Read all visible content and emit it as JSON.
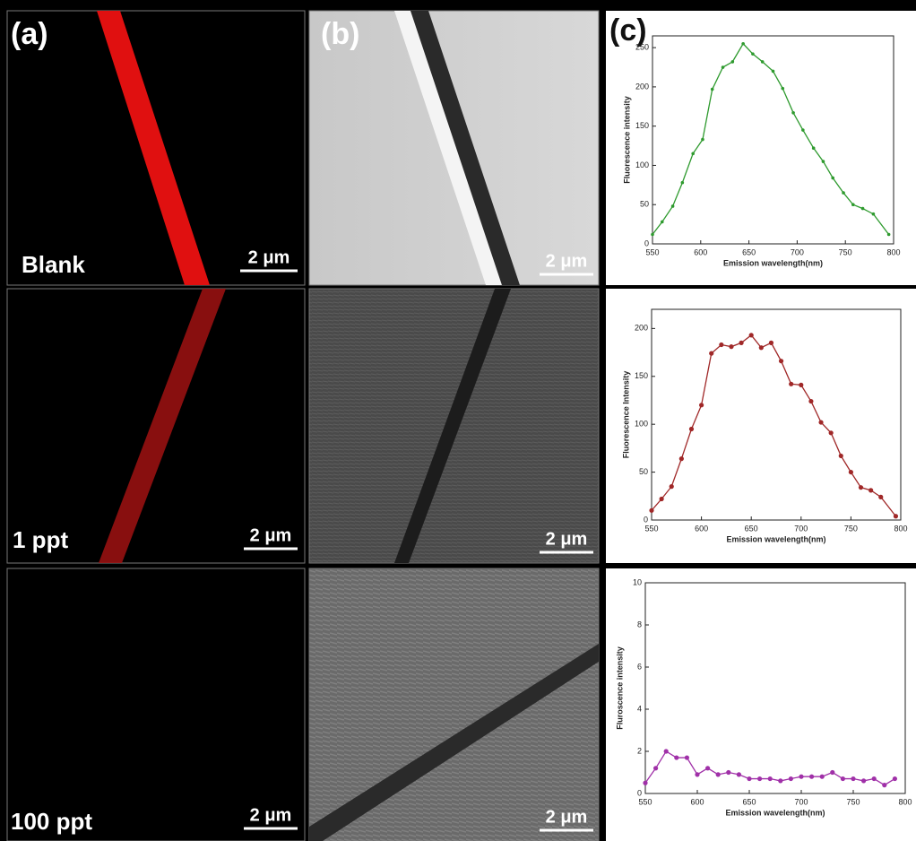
{
  "panels": {
    "a": "(a)",
    "b": "(b)",
    "c": "(c)",
    "rows": [
      "Blank",
      "1 ppt",
      "100 ppt"
    ],
    "scale_bar": "2 μm"
  },
  "chart_data": [
    {
      "type": "line",
      "xlabel": "Emission wavelength(nm)",
      "ylabel": "Fluorescence intensity",
      "x": [
        550,
        560,
        571,
        581,
        592,
        602,
        612,
        623,
        633,
        644,
        654,
        664,
        675,
        685,
        696,
        706,
        717,
        727,
        737,
        748,
        758,
        768,
        779,
        795
      ],
      "series": [
        {
          "name": "Blank",
          "color": "#2e9a2e",
          "values": [
            12,
            28,
            48,
            78,
            115,
            133,
            197,
            225,
            232,
            255,
            242,
            232,
            220,
            198,
            167,
            145,
            122,
            105,
            84,
            65,
            50,
            45,
            38,
            12
          ]
        }
      ],
      "xlim": [
        550,
        800
      ],
      "xticks": [
        550,
        600,
        650,
        700,
        750,
        800
      ],
      "ylim": [
        0,
        265
      ],
      "yticks": [
        0,
        50,
        100,
        150,
        200,
        250
      ]
    },
    {
      "type": "line",
      "xlabel": "Emission wavelength(nm)",
      "ylabel": "Fluorescence Intensity",
      "x": [
        550,
        560,
        570,
        580,
        590,
        600,
        610,
        620,
        630,
        640,
        650,
        660,
        670,
        680,
        690,
        700,
        710,
        720,
        730,
        740,
        750,
        760,
        770,
        780,
        795
      ],
      "series": [
        {
          "name": "1 ppt",
          "color": "#a02828",
          "values": [
            10,
            22,
            35,
            64,
            95,
            120,
            174,
            183,
            181,
            185,
            193,
            180,
            185,
            166,
            142,
            141,
            124,
            102,
            91,
            67,
            50,
            34,
            31,
            24,
            4
          ]
        }
      ],
      "xlim": [
        550,
        800
      ],
      "xticks": [
        550,
        600,
        650,
        700,
        750,
        800
      ],
      "ylim": [
        0,
        220
      ],
      "yticks": [
        0,
        50,
        100,
        150,
        200
      ]
    },
    {
      "type": "line",
      "xlabel": "Emission wavelength(nm)",
      "ylabel": "Fluroscence intensity",
      "x": [
        550,
        560,
        570,
        580,
        590,
        600,
        610,
        620,
        630,
        640,
        650,
        660,
        670,
        680,
        690,
        700,
        710,
        720,
        730,
        740,
        750,
        760,
        770,
        780,
        790
      ],
      "series": [
        {
          "name": "100 ppt",
          "color": "#a030a8",
          "values": [
            0.5,
            1.2,
            2.0,
            1.7,
            1.7,
            0.9,
            1.2,
            0.9,
            1.0,
            0.9,
            0.7,
            0.7,
            0.7,
            0.6,
            0.7,
            0.8,
            0.8,
            0.8,
            1.0,
            0.7,
            0.7,
            0.6,
            0.7,
            0.4,
            0.7
          ]
        }
      ],
      "xlim": [
        550,
        800
      ],
      "xticks": [
        550,
        600,
        650,
        700,
        750,
        800
      ],
      "ylim": [
        0,
        10
      ],
      "yticks": [
        0,
        2,
        4,
        6,
        8,
        10
      ]
    }
  ]
}
